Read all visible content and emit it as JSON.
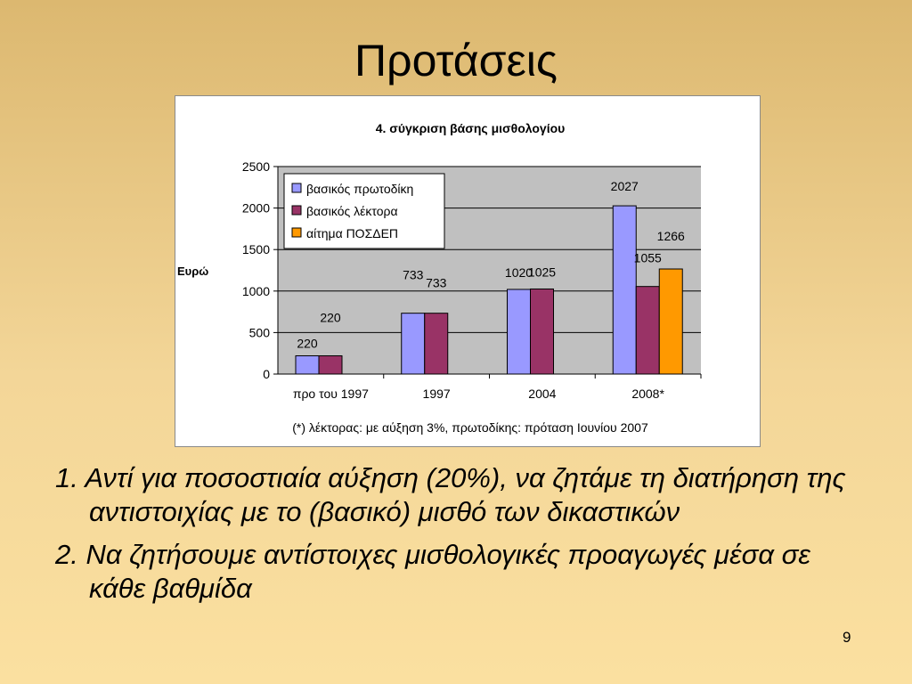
{
  "slide": {
    "title": "Προτάσεις",
    "bullets": [
      "1. Αντί για ποσοστιαία αύξηση (20%), να ζητάμε τη διατήρηση της αντιστοιχίας με το (βασικό) μισθό των δικαστικών",
      "2. Να ζητήσουμε αντίστοιχες μισθολογικές προαγωγές μέσα σε κάθε βαθμίδα"
    ],
    "page_number": "9"
  },
  "chart_data": {
    "type": "bar",
    "title": "4. σύγκριση βάσης μισθολογίου",
    "ylabel": "Ευρώ",
    "xlabel": "",
    "ylim": [
      0,
      2500
    ],
    "yticks": [
      0,
      500,
      1000,
      1500,
      2000,
      2500
    ],
    "grid": true,
    "legend": "top-left",
    "categories": [
      "προ του 1997",
      "1997",
      "2004",
      "2008*"
    ],
    "series": [
      {
        "name": "βασικός πρωτοδίκη",
        "color": "#9999ff",
        "values": [
          220,
          733,
          1020,
          2027
        ]
      },
      {
        "name": "βασικός λέκτορα",
        "color": "#993366",
        "values": [
          220,
          733,
          1025,
          1055
        ]
      },
      {
        "name": "αίτημα ΠΟΣΔΕΠ",
        "color": "#ff9900",
        "values": [
          null,
          null,
          null,
          1266
        ]
      }
    ],
    "footnote": "(*) λέκτορας: με αύξηση 3%, πρωτοδίκης: πρόταση Ιουνίου 2007",
    "colors": {
      "plot_background": "#c0c0c0",
      "gridline": "#000000",
      "bar_outline": "#000000"
    }
  }
}
